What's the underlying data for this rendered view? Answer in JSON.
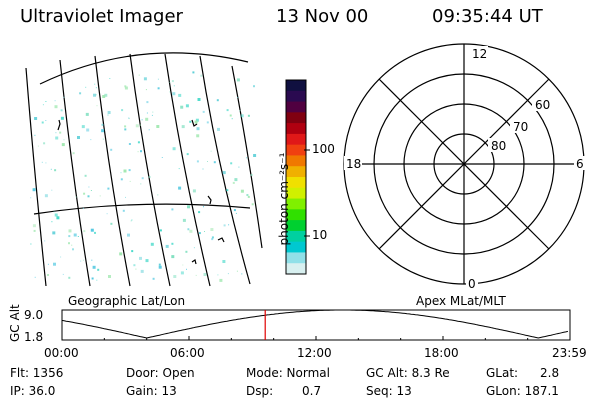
{
  "header": {
    "instrument": "Ultraviolet Imager",
    "date": "13 Nov 00",
    "time": "09:35:44 UT"
  },
  "colorbar": {
    "label": "photon cm⁻²s⁻¹",
    "tick_100": "100",
    "tick_10": "10",
    "colors": [
      "#101040",
      "#2a0a50",
      "#500040",
      "#800010",
      "#b00010",
      "#e01818",
      "#f04010",
      "#f07800",
      "#f0b000",
      "#f0e000",
      "#d0f000",
      "#80f000",
      "#30e000",
      "#00d030",
      "#00d0a0",
      "#00c8d0",
      "#90e0e8",
      "#d8f0f0"
    ]
  },
  "polar_plot": {
    "mlt_12": "12",
    "mlt_18": "18",
    "mlt_6": "6",
    "mlt_0": "0",
    "lat_60": "60",
    "lat_70": "70",
    "lat_80": "80"
  },
  "labels": {
    "geo": "Geographic Lat/Lon",
    "apex": "Apex MLat/MLT"
  },
  "altitude_plot": {
    "axis_label": "GC Alt",
    "ymax": "9.0",
    "ymin": "1.8",
    "ticks": [
      "00:00",
      "06:00",
      "12:00",
      "18:00",
      "23:59"
    ],
    "current_time_marker_hours": 9.6
  },
  "footer": {
    "flt": "Flt: 1356",
    "ip": "IP: 36.0",
    "door": "Door: Open",
    "gain": "Gain: 13",
    "mode": "Mode: Normal",
    "dsp_label": "Dsp:",
    "dsp_value": "0.7",
    "gcalt": "GC Alt: 8.3 Re",
    "seq": "Seq: 13",
    "glat_label": "GLat:",
    "glat_value": "2.8",
    "glon": "GLon: 187.1"
  }
}
